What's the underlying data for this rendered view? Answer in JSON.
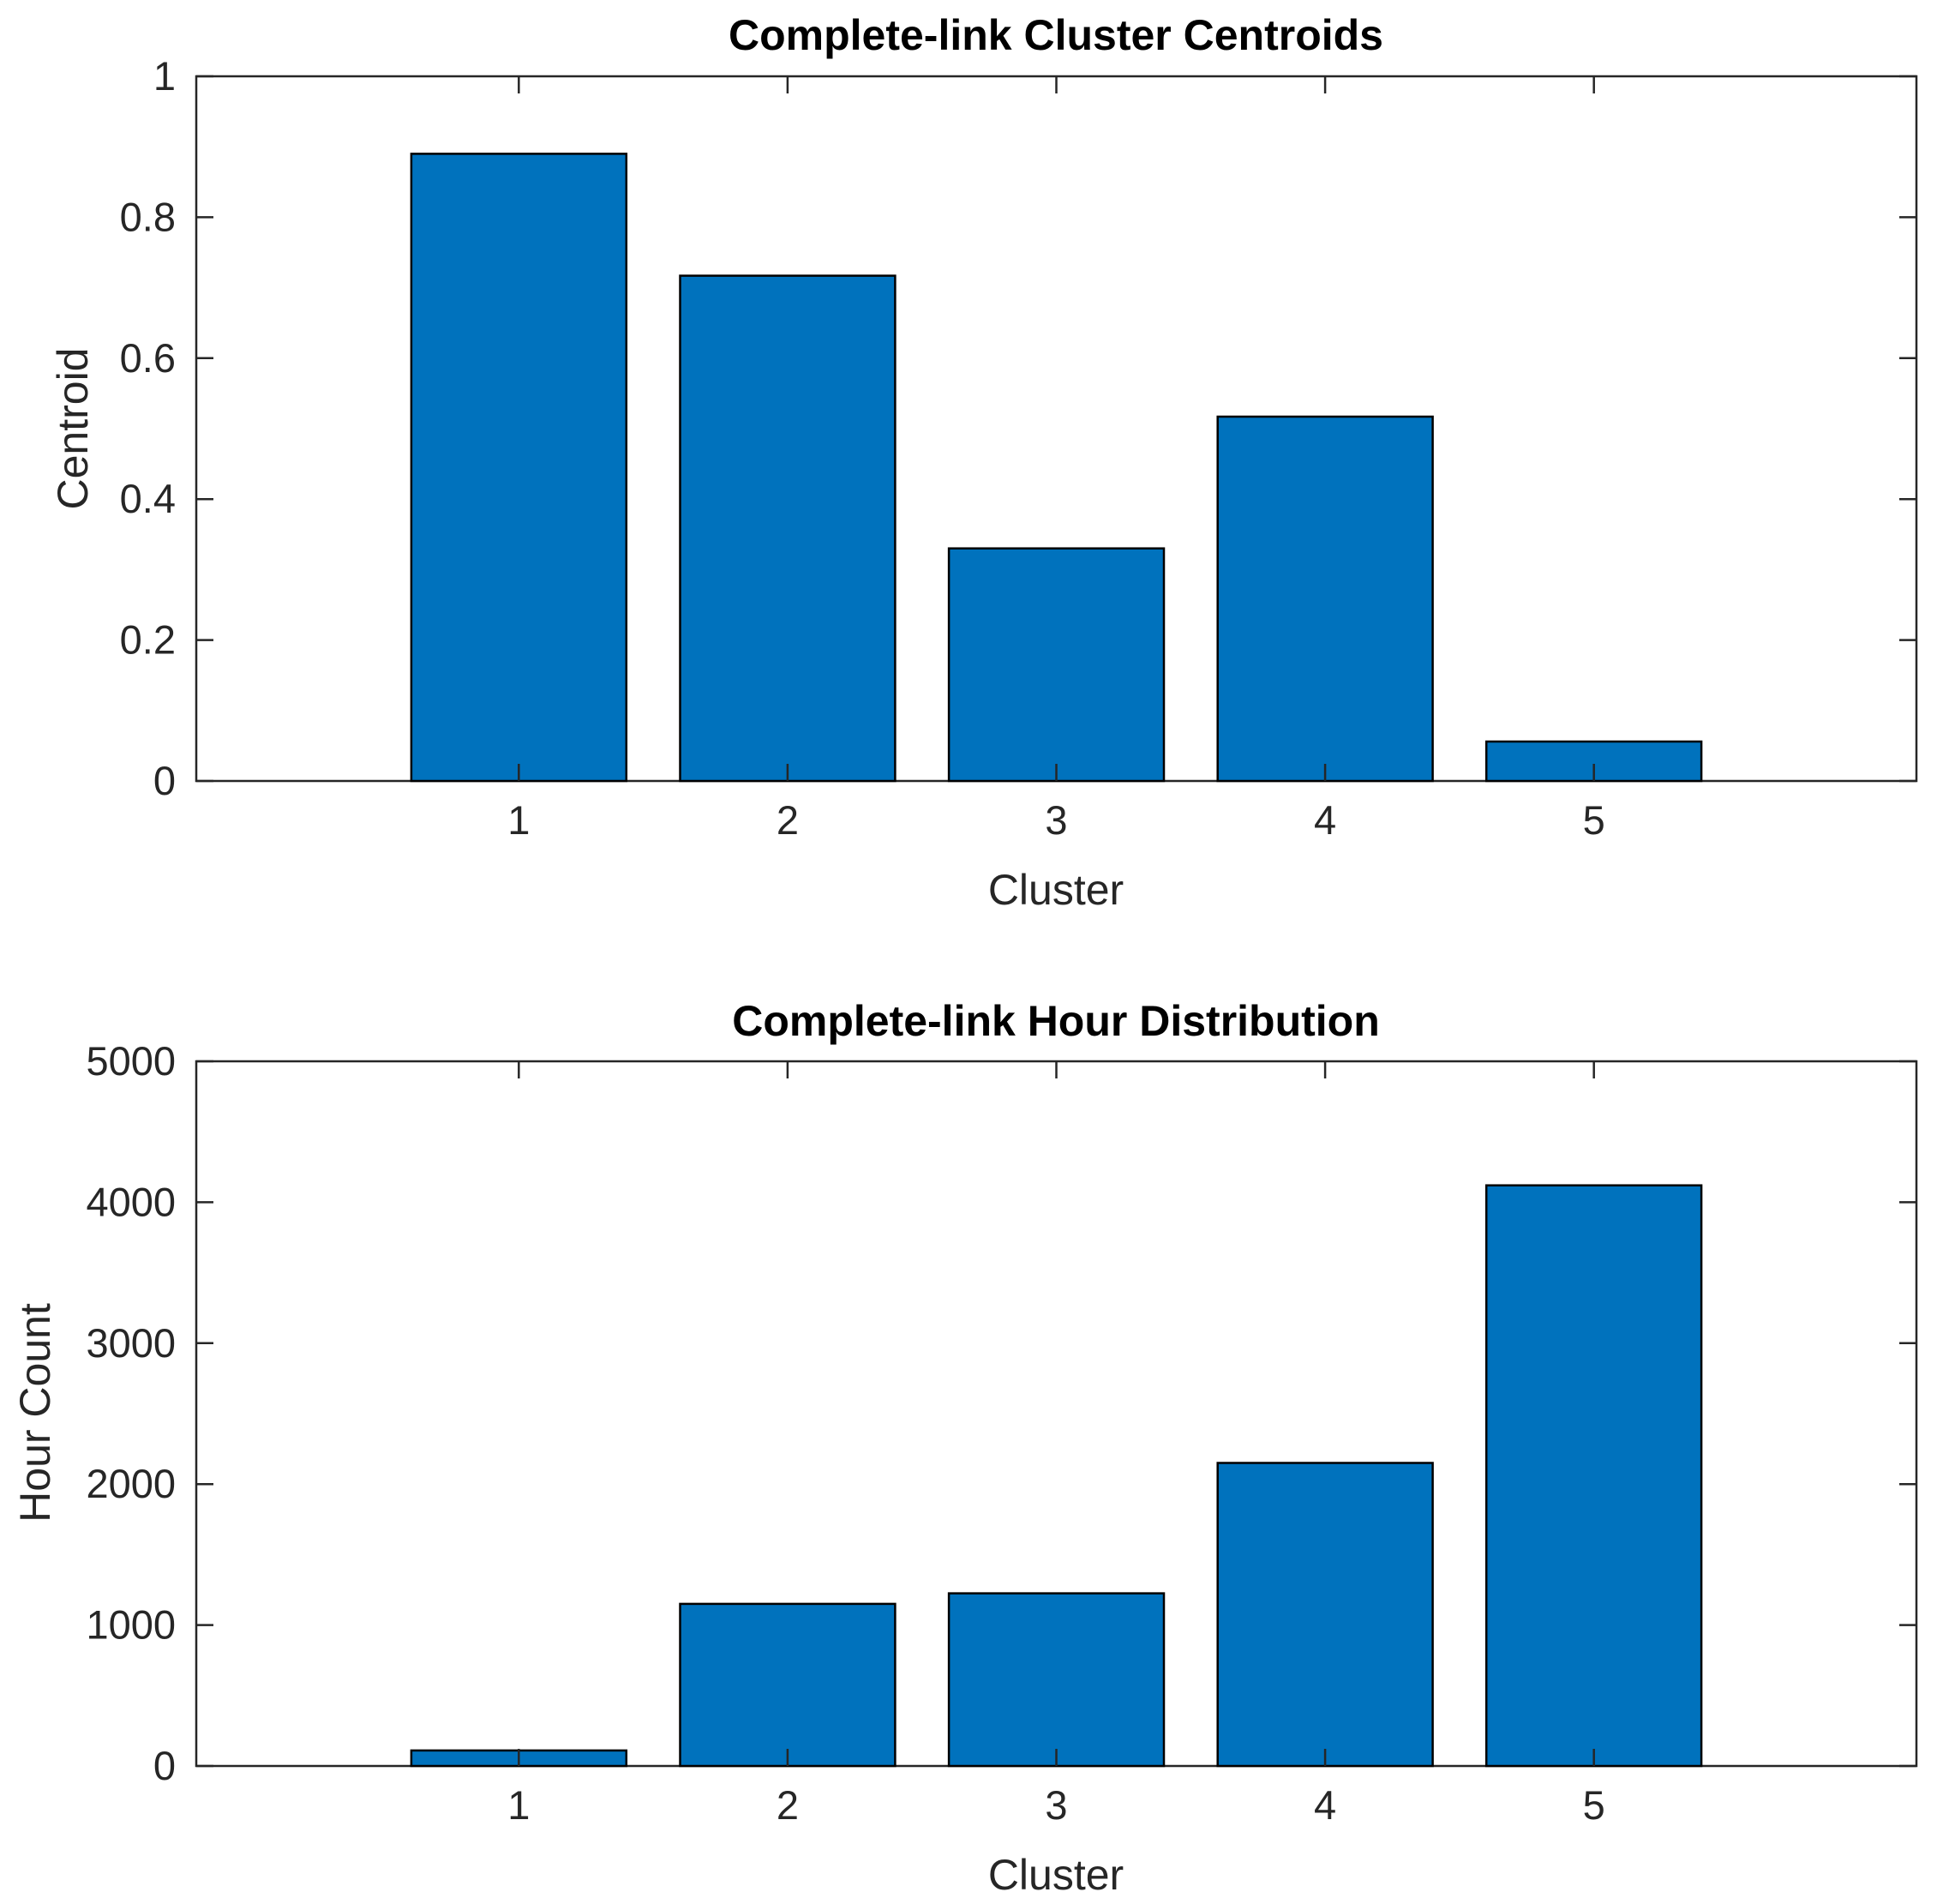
{
  "colors": {
    "bar": "#0072BD",
    "axis": "#262626"
  },
  "chart_data": [
    {
      "type": "bar",
      "title": "Complete-link Cluster Centroids",
      "xlabel": "Cluster",
      "ylabel": "Centroid",
      "categories": [
        "1",
        "2",
        "3",
        "4",
        "5"
      ],
      "x": [
        1,
        2,
        3,
        4,
        5
      ],
      "xlim": [
        -0.2,
        6.2
      ],
      "values": [
        0.89,
        0.717,
        0.33,
        0.517,
        0.056
      ],
      "ylim": [
        0,
        1
      ],
      "yticks": [
        0,
        0.2,
        0.4,
        0.6,
        0.8,
        1
      ],
      "ytick_labels": [
        "0",
        "0.2",
        "0.4",
        "0.6",
        "0.8",
        "1"
      ],
      "grid": false
    },
    {
      "type": "bar",
      "title": "Complete-link Hour Distribution",
      "xlabel": "Cluster",
      "ylabel": "Hour Count",
      "categories": [
        "1",
        "2",
        "3",
        "4",
        "5"
      ],
      "x": [
        1,
        2,
        3,
        4,
        5
      ],
      "xlim": [
        -0.2,
        6.2
      ],
      "values": [
        110,
        1150,
        1225,
        2150,
        4120
      ],
      "ylim": [
        0,
        5000
      ],
      "yticks": [
        0,
        1000,
        2000,
        3000,
        4000,
        5000
      ],
      "ytick_labels": [
        "0",
        "1000",
        "2000",
        "3000",
        "4000",
        "5000"
      ],
      "grid": false
    }
  ]
}
